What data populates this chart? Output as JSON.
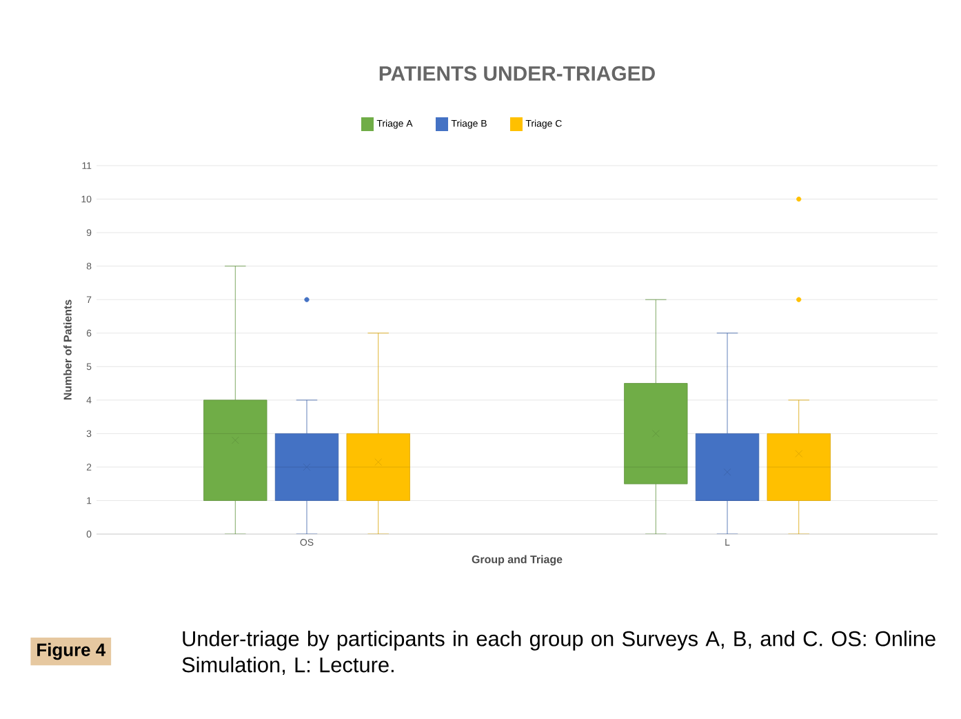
{
  "chart_data": {
    "type": "box",
    "title": "PATIENTS UNDER-TRIAGED",
    "xlabel": "Group and Triage",
    "ylabel": "Number of Patients",
    "categories": [
      "OS",
      "L"
    ],
    "ylim": [
      0,
      11
    ],
    "yticks": [
      0,
      1,
      2,
      3,
      4,
      5,
      6,
      7,
      8,
      9,
      10,
      11
    ],
    "grid": "y",
    "legend": "top",
    "series": [
      {
        "name": "Triage A",
        "color": "#70ad47",
        "boxes": [
          {
            "low": 0,
            "q1": 1,
            "median": 3,
            "q3": 4,
            "high": 8,
            "mean": 2.8
          },
          {
            "low": 0,
            "q1": 1.5,
            "median": 2,
            "q3": 4.5,
            "high": 7,
            "mean": 3
          }
        ]
      },
      {
        "name": "Triage B",
        "color": "#4472c4",
        "boxes": [
          {
            "low": 0,
            "q1": 1,
            "median": 2,
            "q3": 3,
            "high": 4,
            "mean": 2,
            "outliers": [
              7
            ]
          },
          {
            "low": 0,
            "q1": 1,
            "median": 1,
            "q3": 3,
            "high": 6,
            "mean": 1.85
          }
        ]
      },
      {
        "name": "Triage C",
        "color": "#ffc000",
        "boxes": [
          {
            "low": 0,
            "q1": 1,
            "median": 2,
            "q3": 3,
            "high": 6,
            "mean": 2.15
          },
          {
            "low": 0,
            "q1": 1,
            "median": 2,
            "q3": 3,
            "high": 4,
            "mean": 2.4,
            "outliers": [
              7,
              10
            ]
          }
        ]
      }
    ],
    "annotations": [
      "Figure 4",
      "Under-triage by participants in each group on Surveys A, B, and C. OS: Online Simulation, L: Lecture."
    ]
  }
}
